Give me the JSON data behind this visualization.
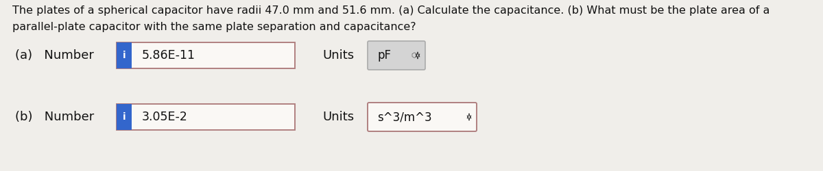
{
  "bg_color": "#f0eeea",
  "title_line1": "The plates of a spherical capacitor have radii 47.0 mm and 51.6 mm. (a) Calculate the capacitance. (b) What must be the plate area of a",
  "title_line2": "parallel-plate capacitor with the same plate separation and capacitance?",
  "row_a_label": "(a)   Number",
  "row_b_label": "(b)   Number",
  "row_a_value": "5.86E-11",
  "row_b_value": "3.05E-2",
  "units_label": "Units",
  "row_a_units": "pF",
  "row_b_units": "s^3/m^3",
  "input_border_color": "#b08080",
  "input_inner_color": "#faf8f5",
  "blue_tab_color": "#3366cc",
  "blue_tab_text": "i",
  "pf_box_border": "#aaaaaa",
  "pf_box_face": "#d4d4d4",
  "units_b_border": "#b08080",
  "units_b_face": "#faf8f5",
  "title_fontsize": 11.5,
  "label_fontsize": 13,
  "value_fontsize": 12.5,
  "units_fontsize": 12
}
